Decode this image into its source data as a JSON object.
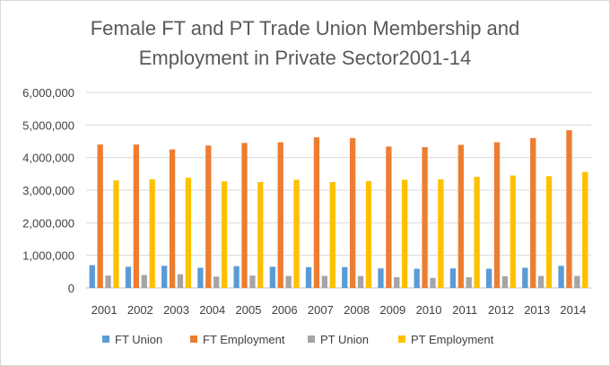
{
  "chart_data": {
    "type": "bar",
    "title_lines": [
      "Female FT and PT Trade Union Membership and",
      "Employment in Private Sector2001-14"
    ],
    "xlabel": "",
    "ylabel": "",
    "ylim": [
      0,
      6000000
    ],
    "yticks": [
      0,
      1000000,
      2000000,
      3000000,
      4000000,
      5000000,
      6000000
    ],
    "ytick_labels": [
      "0",
      "1,000,000",
      "2,000,000",
      "3,000,000",
      "4,000,000",
      "5,000,000",
      "6,000,000"
    ],
    "grid": true,
    "legend_position": "bottom",
    "categories": [
      "2001",
      "2002",
      "2003",
      "2004",
      "2005",
      "2006",
      "2007",
      "2008",
      "2009",
      "2010",
      "2011",
      "2012",
      "2013",
      "2014"
    ],
    "series": [
      {
        "name": "FT Union",
        "color": "#5b9bd5",
        "values": [
          700000,
          650000,
          680000,
          620000,
          670000,
          650000,
          640000,
          640000,
          600000,
          590000,
          600000,
          590000,
          620000,
          680000
        ]
      },
      {
        "name": "FT Employment",
        "color": "#ed7d31",
        "values": [
          4400000,
          4400000,
          4250000,
          4370000,
          4450000,
          4470000,
          4620000,
          4600000,
          4340000,
          4320000,
          4390000,
          4470000,
          4600000,
          4840000
        ]
      },
      {
        "name": "PT Union",
        "color": "#a5a5a5",
        "values": [
          380000,
          400000,
          420000,
          350000,
          380000,
          370000,
          370000,
          370000,
          330000,
          310000,
          330000,
          360000,
          370000,
          370000
        ]
      },
      {
        "name": "PT Employment",
        "color": "#ffc000",
        "values": [
          3300000,
          3330000,
          3380000,
          3270000,
          3250000,
          3320000,
          3250000,
          3280000,
          3320000,
          3330000,
          3410000,
          3450000,
          3430000,
          3560000
        ]
      }
    ]
  }
}
